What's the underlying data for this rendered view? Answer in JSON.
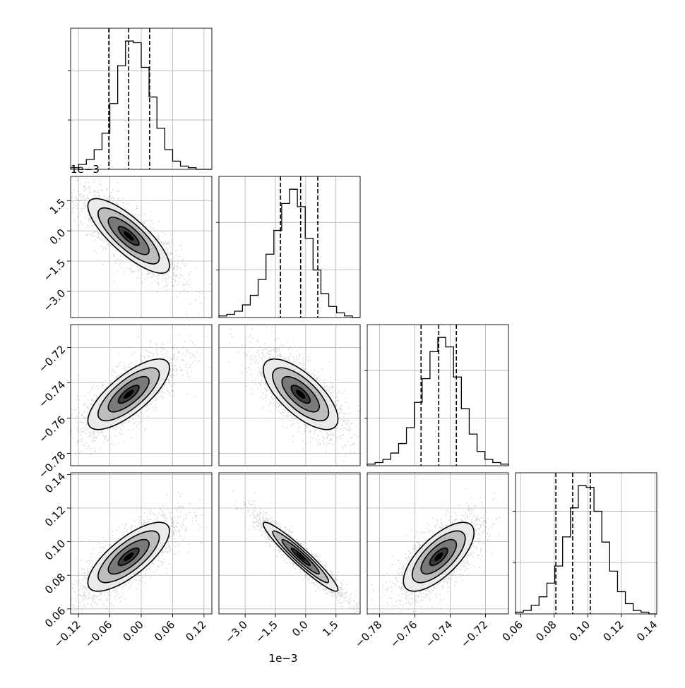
{
  "chart_data": {
    "type": "corner",
    "dimensions": [
      {
        "range": [
          -0.135,
          0.135
        ],
        "ticks": [
          -0.12,
          -0.06,
          0.0,
          0.06,
          0.12
        ],
        "tick_labels": [
          "−0.12",
          "−0.06",
          "0.00",
          "0.06",
          "0.12"
        ],
        "offset_label": "",
        "quantiles": [
          -0.062,
          -0.024,
          0.016
        ],
        "hist": [
          1,
          3,
          6,
          12,
          22,
          40,
          63,
          78,
          77,
          62,
          44,
          25,
          12,
          5,
          2,
          1,
          0,
          0
        ]
      },
      {
        "range": [
          -4.3,
          2.7
        ],
        "ticks": [
          -3.0,
          -1.5,
          0.0,
          1.5
        ],
        "tick_labels": [
          "−3.0",
          "−1.5",
          "0.0",
          "1.5"
        ],
        "offset_label": "1e−3",
        "quantiles": [
          -1.25,
          -0.25,
          0.6
        ],
        "hist": [
          1,
          2,
          4,
          8,
          14,
          24,
          40,
          55,
          72,
          81,
          70,
          50,
          30,
          15,
          7,
          3,
          1,
          0
        ]
      },
      {
        "range": [
          -0.787,
          -0.707
        ],
        "ticks": [
          -0.78,
          -0.76,
          -0.74,
          -0.72
        ],
        "tick_labels": [
          "−0.78",
          "−0.76",
          "−0.74",
          "−0.72"
        ],
        "offset_label": "",
        "quantiles": [
          -0.7565,
          -0.7465,
          -0.7365
        ],
        "hist": [
          1,
          2,
          4,
          8,
          14,
          24,
          40,
          55,
          72,
          81,
          75,
          56,
          36,
          20,
          9,
          4,
          2,
          1
        ]
      },
      {
        "range": [
          0.057,
          0.141
        ],
        "ticks": [
          0.06,
          0.08,
          0.1,
          0.12,
          0.14
        ],
        "tick_labels": [
          "0.06",
          "0.08",
          "0.10",
          "0.12",
          "0.14"
        ],
        "offset_label": "",
        "quantiles": [
          0.081,
          0.091,
          0.1015
        ],
        "hist": [
          1,
          2,
          5,
          10,
          18,
          28,
          45,
          62,
          75,
          74,
          60,
          42,
          25,
          13,
          6,
          2,
          1,
          0
        ]
      }
    ],
    "correlations": {
      "1-0": -0.8,
      "2-0": 0.75,
      "2-1": -0.7,
      "3-0": 0.75,
      "3-1": -0.95,
      "3-2": 0.7
    },
    "grid": true,
    "xlabel": "",
    "ylabel": ""
  }
}
